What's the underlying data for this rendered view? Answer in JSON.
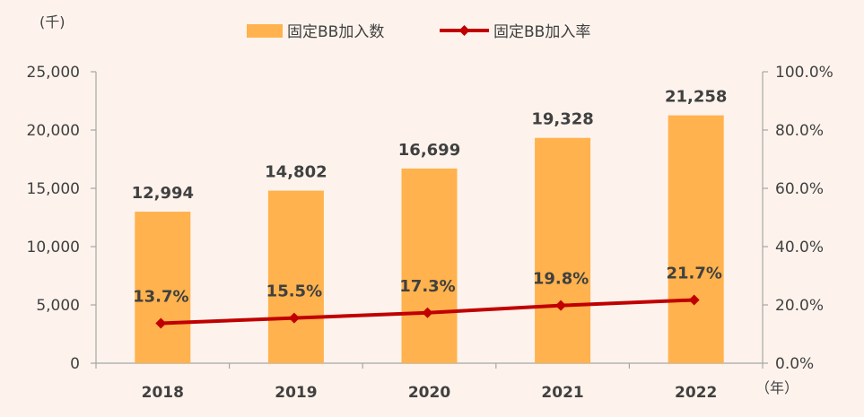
{
  "chart_data": {
    "type": "bar",
    "categories": [
      "2018",
      "2019",
      "2020",
      "2021",
      "2022"
    ],
    "series": [
      {
        "name": "固定BB加入数",
        "type": "bar",
        "axis": "left",
        "values": [
          12994,
          14802,
          16699,
          19328,
          21258
        ],
        "labels": [
          "12,994",
          "14,802",
          "16,699",
          "19,328",
          "21,258"
        ],
        "color": "#ffb24d"
      },
      {
        "name": "固定BB加入率",
        "type": "line",
        "axis": "right",
        "values": [
          13.7,
          15.5,
          17.3,
          19.8,
          21.7
        ],
        "labels": [
          "13.7%",
          "15.5%",
          "17.3%",
          "19.8%",
          "21.7%"
        ],
        "color": "#c00000"
      }
    ],
    "y_left": {
      "unit": "(千)",
      "ylim": [
        0,
        25000
      ],
      "ticks": [
        "0",
        "5,000",
        "10,000",
        "15,000",
        "20,000",
        "25,000"
      ]
    },
    "y_right": {
      "ylim": [
        0,
        100
      ],
      "ticks": [
        "0.0%",
        "20.0%",
        "40.0%",
        "60.0%",
        "80.0%",
        "100.0%"
      ]
    },
    "x_unit": "（年）",
    "legend_position": "top",
    "grid": false
  }
}
